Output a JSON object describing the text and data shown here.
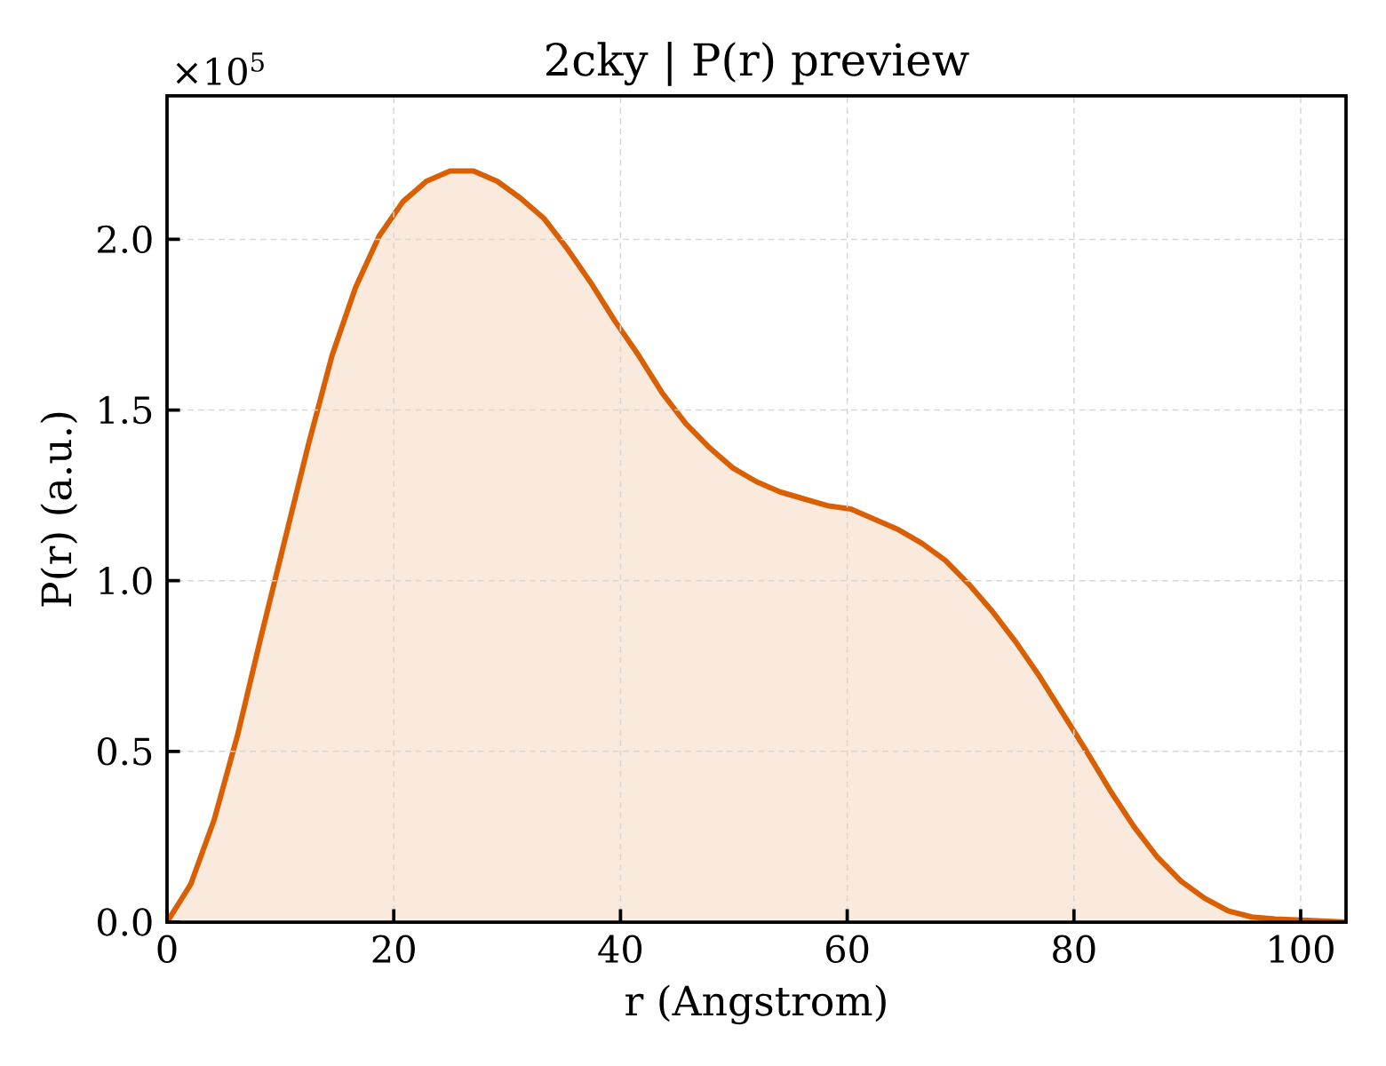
{
  "chart_data": {
    "type": "area",
    "title": "2cky | P(r) preview",
    "xlabel": "r (Angstrom)",
    "ylabel": "P(r) (a.u.)",
    "annotations": [
      "×10$^{5}$"
    ],
    "x": [
      0,
      2.08,
      4.16,
      6.24,
      8.32,
      10.4,
      12.48,
      14.56,
      16.64,
      18.72,
      20.8,
      22.88,
      24.96,
      27.04,
      29.12,
      31.2,
      33.28,
      35.36,
      37.44,
      39.52,
      41.6,
      43.68,
      45.76,
      47.84,
      49.92,
      52.0,
      54.08,
      56.16,
      58.24,
      60.32,
      62.4,
      64.48,
      66.56,
      68.64,
      70.72,
      72.8,
      74.88,
      76.96,
      79.04,
      81.12,
      83.2,
      85.28,
      87.36,
      89.44,
      91.52,
      93.6,
      95.68,
      97.76,
      99.84,
      101.92,
      104
    ],
    "series": [
      {
        "color": "#d95f02",
        "values": [
          0,
          0.11,
          0.3,
          0.55,
          0.84,
          1.12,
          1.4,
          1.66,
          1.86,
          2.01,
          2.11,
          2.17,
          2.2,
          2.2,
          2.17,
          2.12,
          2.06,
          1.97,
          1.87,
          1.76,
          1.66,
          1.55,
          1.46,
          1.39,
          1.33,
          1.29,
          1.26,
          1.24,
          1.22,
          1.21,
          1.18,
          1.15,
          1.11,
          1.06,
          0.99,
          0.91,
          0.82,
          0.72,
          0.61,
          0.5,
          0.385,
          0.28,
          0.19,
          0.12,
          0.07,
          0.033,
          0.015,
          0.009,
          0.006,
          0.003,
          0
        ]
      }
    ],
    "xlim": [
      0,
      104
    ],
    "ylim": [
      0,
      2.42
    ],
    "xticks": [
      0,
      20,
      40,
      60,
      80,
      100
    ],
    "yticks": [
      {
        "value": 0,
        "label": "0.0"
      },
      0.5,
      {
        "value": 1,
        "label": "1.0"
      },
      1.5,
      {
        "value": 2,
        "label": "2.0"
      }
    ],
    "grid": true
  }
}
